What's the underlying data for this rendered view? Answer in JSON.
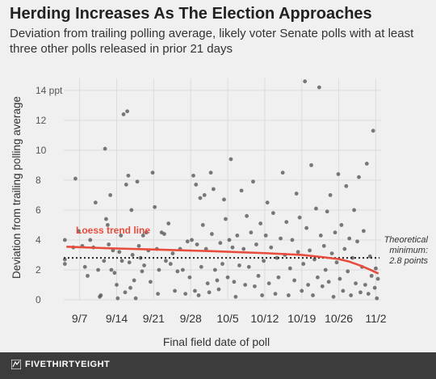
{
  "header": {
    "title": "Herding Increases As The Election Approaches",
    "subtitle": "Deviation from trailing polling average, likely voter Senate polls with at least three other polls released in prior 21 days"
  },
  "footer": {
    "brand": "FIVETHIRTYEIGHT"
  },
  "colors": {
    "background": "#f0f0f0",
    "points": "#555555",
    "trend": "#e84c3d",
    "reference": "#222222",
    "grid": "#dcdcdc",
    "footer": "#3c3c3c"
  },
  "chart_data": {
    "type": "scatter",
    "title": "Herding Increases As The Election Approaches",
    "subtitle": "Deviation from trailing polling average, likely voter Senate polls with at least three other polls released in prior 21 days",
    "xlabel": "Final field date of poll",
    "ylabel": "Deviation from trailing polling average",
    "x_ticks": [
      "9/7",
      "9/14",
      "9/21",
      "9/28",
      "10/5",
      "10/12",
      "10/19",
      "10/26",
      "11/2"
    ],
    "x_tick_days": [
      0,
      7,
      14,
      21,
      28,
      35,
      42,
      49,
      56
    ],
    "x_axis_note": "x values are day offsets from 9/7 (2014)",
    "xlim": [
      -3,
      57
    ],
    "y_ticks": [
      0,
      2,
      4,
      6,
      8,
      10,
      12,
      14
    ],
    "y_tick_labels": [
      "0",
      "2",
      "4",
      "6",
      "8",
      "10",
      "12",
      "14 ppt"
    ],
    "ylim": [
      0,
      14.8
    ],
    "grid": true,
    "points": [
      [
        -2.8,
        2.4
      ],
      [
        -2.8,
        2.7
      ],
      [
        -2.8,
        4.0
      ],
      [
        -1.2,
        3.5
      ],
      [
        -0.8,
        8.1
      ],
      [
        -0.2,
        4.6
      ],
      [
        0.5,
        3.6
      ],
      [
        1,
        2.2
      ],
      [
        1.5,
        1.6
      ],
      [
        2,
        4.0
      ],
      [
        2.6,
        3.5
      ],
      [
        3,
        6.5
      ],
      [
        3.5,
        2.0
      ],
      [
        3.8,
        0.2
      ],
      [
        4,
        0.3
      ],
      [
        4.6,
        2.6
      ],
      [
        4.8,
        10.1
      ],
      [
        5,
        5.4
      ],
      [
        5.3,
        5.0
      ],
      [
        5.5,
        3.7
      ],
      [
        5.8,
        7.0
      ],
      [
        6,
        2.0
      ],
      [
        6.3,
        3.3
      ],
      [
        6.6,
        1.8
      ],
      [
        7,
        1.0
      ],
      [
        7.2,
        0.1
      ],
      [
        7.5,
        3.2
      ],
      [
        7.8,
        4.3
      ],
      [
        8,
        2.6
      ],
      [
        8.3,
        12.4
      ],
      [
        8.6,
        0.5
      ],
      [
        8.8,
        7.7
      ],
      [
        9,
        12.6
      ],
      [
        9.2,
        8.3
      ],
      [
        9.4,
        2.5
      ],
      [
        9.6,
        0.8
      ],
      [
        9.8,
        6.0
      ],
      [
        10,
        3.0
      ],
      [
        10.3,
        1.3
      ],
      [
        10.6,
        0.1
      ],
      [
        10.9,
        7.9
      ],
      [
        11.2,
        3.6
      ],
      [
        11.5,
        2.8
      ],
      [
        11.8,
        1.9
      ],
      [
        12,
        4.3
      ],
      [
        12.2,
        2.3
      ],
      [
        12.6,
        4.5
      ],
      [
        13,
        3.3
      ],
      [
        13.4,
        1.2
      ],
      [
        13.8,
        8.5
      ],
      [
        14.2,
        6.2
      ],
      [
        14.6,
        3.4
      ],
      [
        14.8,
        0.4
      ],
      [
        15,
        2.0
      ],
      [
        15.5,
        4.5
      ],
      [
        16,
        4.4
      ],
      [
        16.3,
        2.6
      ],
      [
        16.8,
        5.1
      ],
      [
        17.2,
        2.4
      ],
      [
        17.6,
        3.1
      ],
      [
        18,
        0.6
      ],
      [
        18.5,
        1.9
      ],
      [
        19,
        3.4
      ],
      [
        19.5,
        2.0
      ],
      [
        20,
        0.4
      ],
      [
        20.4,
        3.9
      ],
      [
        20.8,
        1.5
      ],
      [
        21.2,
        4.0
      ],
      [
        21.5,
        8.3
      ],
      [
        21.8,
        0.6
      ],
      [
        22,
        7.7
      ],
      [
        22.2,
        3.7
      ],
      [
        22.5,
        0.3
      ],
      [
        22.8,
        6.8
      ],
      [
        23,
        2.2
      ],
      [
        23.3,
        5.0
      ],
      [
        23.6,
        7.0
      ],
      [
        23.9,
        3.4
      ],
      [
        24.2,
        1.1
      ],
      [
        24.5,
        0.5
      ],
      [
        24.8,
        8.5
      ],
      [
        25,
        4.4
      ],
      [
        25.3,
        7.4
      ],
      [
        25.6,
        2.0
      ],
      [
        26,
        1.3
      ],
      [
        26.3,
        0.7
      ],
      [
        26.6,
        3.8
      ],
      [
        27,
        2.4
      ],
      [
        27.3,
        6.7
      ],
      [
        27.6,
        5.4
      ],
      [
        28,
        1.5
      ],
      [
        28.3,
        4.0
      ],
      [
        28.6,
        9.4
      ],
      [
        28.9,
        3.5
      ],
      [
        29.2,
        1.2
      ],
      [
        29.5,
        0.2
      ],
      [
        29.8,
        4.3
      ],
      [
        30.2,
        2.3
      ],
      [
        30.6,
        7.3
      ],
      [
        31,
        3.4
      ],
      [
        31.3,
        1.0
      ],
      [
        31.6,
        5.6
      ],
      [
        32,
        2.2
      ],
      [
        32.4,
        4.5
      ],
      [
        32.8,
        7.9
      ],
      [
        33.1,
        0.9
      ],
      [
        33.4,
        3.7
      ],
      [
        33.8,
        1.6
      ],
      [
        34.2,
        5.1
      ],
      [
        34.5,
        0.3
      ],
      [
        34.8,
        2.6
      ],
      [
        35.2,
        4.3
      ],
      [
        35.5,
        6.5
      ],
      [
        35.8,
        1.1
      ],
      [
        36.2,
        3.5
      ],
      [
        36.6,
        5.8
      ],
      [
        37,
        0.4
      ],
      [
        37.3,
        2.8
      ],
      [
        37.6,
        1.5
      ],
      [
        38,
        4.1
      ],
      [
        38.4,
        8.5
      ],
      [
        38.8,
        3.0
      ],
      [
        39.1,
        5.2
      ],
      [
        39.5,
        0.3
      ],
      [
        39.8,
        2.1
      ],
      [
        40.2,
        4.0
      ],
      [
        40.6,
        1.3
      ],
      [
        41,
        7.1
      ],
      [
        41.3,
        3.2
      ],
      [
        41.6,
        5.5
      ],
      [
        42,
        0.6
      ],
      [
        42.3,
        2.4
      ],
      [
        42.6,
        14.6
      ],
      [
        42.9,
        4.8
      ],
      [
        43.2,
        1.0
      ],
      [
        43.5,
        3.3
      ],
      [
        43.8,
        9.0
      ],
      [
        44.1,
        0.3
      ],
      [
        44.4,
        2.7
      ],
      [
        44.7,
        6.1
      ],
      [
        45,
        1.5
      ],
      [
        45.3,
        14.2
      ],
      [
        45.6,
        4.3
      ],
      [
        45.9,
        0.9
      ],
      [
        46.2,
        3.6
      ],
      [
        46.5,
        2.0
      ],
      [
        46.8,
        5.9
      ],
      [
        47.1,
        1.2
      ],
      [
        47.4,
        7.0
      ],
      [
        47.7,
        3.1
      ],
      [
        48,
        0.2
      ],
      [
        48.3,
        4.5
      ],
      [
        48.6,
        2.5
      ],
      [
        48.9,
        8.4
      ],
      [
        49.2,
        1.4
      ],
      [
        49.5,
        5.0
      ],
      [
        49.8,
        0.6
      ],
      [
        50.1,
        3.4
      ],
      [
        50.4,
        7.6
      ],
      [
        50.7,
        1.9
      ],
      [
        51,
        4.1
      ],
      [
        51.3,
        0.3
      ],
      [
        51.6,
        2.8
      ],
      [
        51.9,
        6.0
      ],
      [
        52.2,
        1.1
      ],
      [
        52.5,
        3.9
      ],
      [
        52.8,
        8.2
      ],
      [
        53.1,
        0.5
      ],
      [
        53.4,
        2.2
      ],
      [
        53.7,
        4.6
      ],
      [
        54,
        1.0
      ],
      [
        54.3,
        9.1
      ],
      [
        54.6,
        0.4
      ],
      [
        54.9,
        2.9
      ],
      [
        55.2,
        1.6
      ],
      [
        55.5,
        11.3
      ],
      [
        55.8,
        0.8
      ],
      [
        56,
        2.1
      ],
      [
        56.2,
        0.1
      ],
      [
        56.4,
        1.4
      ]
    ],
    "trend": {
      "label": "Loess trend line",
      "x": [
        -2.5,
        5,
        15,
        25,
        35,
        42,
        46,
        49,
        51,
        53,
        55,
        56.5
      ],
      "y": [
        3.55,
        3.45,
        3.35,
        3.25,
        3.12,
        3.0,
        2.85,
        2.72,
        2.55,
        2.3,
        2.0,
        1.75
      ]
    },
    "reference": {
      "label": "Theoretical minimum: 2.8 points",
      "label_lines": [
        "Theoretical",
        "minimum:",
        "2.8 points"
      ],
      "y": 2.8
    }
  }
}
